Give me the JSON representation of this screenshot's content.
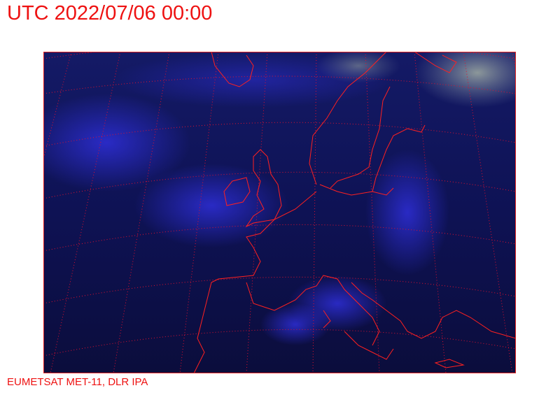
{
  "title": "UTC 2022/07/06 00:00",
  "credit": "EUMETSAT MET-11, DLR IPA",
  "map": {
    "type": "satellite-image",
    "region": "Europe",
    "overlay_color": "#ff2020",
    "background_color": "#0c0f4a",
    "cloud_color": "#2a2ad8"
  }
}
